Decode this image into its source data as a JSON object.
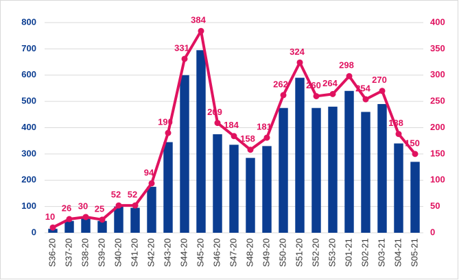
{
  "chart_data": {
    "type": "bar-line",
    "categories": [
      "S36-20",
      "S37-20",
      "S38-20",
      "S39-20",
      "S40-20",
      "S41-20",
      "S42-20",
      "S43-20",
      "S44-20",
      "S45-20",
      "S46-20",
      "S47-20",
      "S48-20",
      "S49-20",
      "S50-20",
      "S51-20",
      "S52-20",
      "S53-20",
      "S01-21",
      "S02-21",
      "S03-21",
      "S04-21",
      "S05-21"
    ],
    "series": [
      {
        "type": "bar",
        "color": "#0b3d91",
        "values": [
          15,
          45,
          55,
          45,
          100,
          95,
          175,
          345,
          600,
          695,
          375,
          335,
          285,
          330,
          475,
          590,
          475,
          480,
          540,
          460,
          490,
          340,
          270
        ]
      },
      {
        "type": "line",
        "axis": "y2",
        "color": "#e0125f",
        "values": [
          10,
          26,
          30,
          25,
          52,
          52,
          94,
          190,
          331,
          384,
          209,
          184,
          158,
          181,
          262,
          324,
          260,
          264,
          298,
          254,
          270,
          188,
          150
        ]
      }
    ],
    "ylim": [
      0,
      800
    ],
    "yticks": [
      0,
      100,
      200,
      300,
      400,
      500,
      600,
      700,
      800
    ],
    "y2lim": [
      0,
      400
    ],
    "y2ticks": [
      0,
      50,
      100,
      150,
      200,
      250,
      300,
      350,
      400
    ],
    "grid": true
  }
}
